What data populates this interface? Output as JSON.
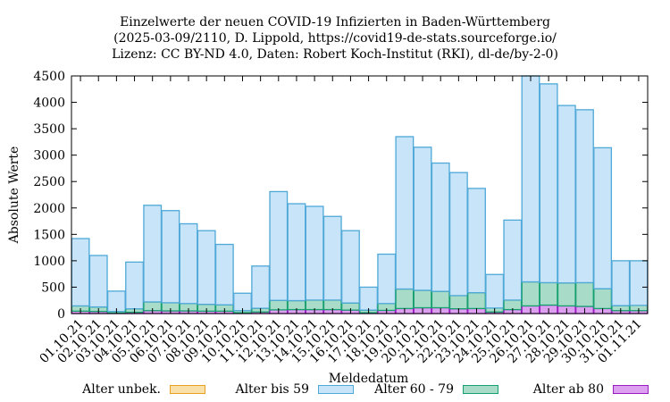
{
  "chart_data": {
    "type": "bar",
    "stacked": true,
    "title_lines": [
      "Einzelwerte der neuen COVID-19 Infizierten in Baden-Württemberg",
      "(2025-03-09/2110, D. Lippold, https://covid19-de-stats.sourceforge.io/",
      "Lizenz: CC BY-ND 4.0, Daten: Robert Koch-Institut (RKI), dl-de/by-2-0)"
    ],
    "xlabel": "Meldedatum",
    "ylabel": "Absolute Werte",
    "ylim": [
      0,
      4500
    ],
    "yticks": [
      0,
      500,
      1000,
      1500,
      2000,
      2500,
      3000,
      3500,
      4000,
      4500
    ],
    "grid": false,
    "legend_position": "bottom",
    "categories": [
      "01.10.21",
      "02.10.21",
      "03.10.21",
      "04.10.21",
      "05.10.21",
      "06.10.21",
      "07.10.21",
      "08.10.21",
      "09.10.21",
      "10.10.21",
      "11.10.21",
      "12.10.21",
      "13.10.21",
      "14.10.21",
      "15.10.21",
      "16.10.21",
      "17.10.21",
      "18.10.21",
      "19.10.21",
      "20.10.21",
      "21.10.21",
      "22.10.21",
      "23.10.21",
      "24.10.21",
      "25.10.21",
      "26.10.21",
      "27.10.21",
      "28.10.21",
      "29.10.21",
      "30.10.21",
      "31.10.21",
      "01.11.21"
    ],
    "tick_labels": [
      "01.10.21",
      "02.10.21",
      "03.10.21",
      "04.10.21",
      "05.10.21",
      "06.10.21",
      "07.10.21",
      "08.10.21",
      "09.10.21",
      "10.10.21",
      "11.10.21",
      "12.10.21",
      "13.10.21",
      "14.10.21",
      "15.10.21",
      "16.10.21",
      "17.10.21",
      "18.10.21",
      "19.10.21",
      "20.10.21",
      "21.10.21",
      "22.10.21",
      "23.10.21",
      "24.10.21",
      "25.10.21",
      "26.10.21",
      "27.10.21",
      "28.10.21",
      "29.10.21",
      "30.10.21",
      "31.10.21",
      "01.11.21"
    ],
    "series": [
      {
        "name": "Alter ab 80",
        "color": "#dda0f0",
        "stroke": "#9a1bbf",
        "values": [
          45,
          40,
          10,
          25,
          55,
          50,
          50,
          45,
          45,
          15,
          30,
          70,
          75,
          75,
          75,
          65,
          15,
          60,
          95,
          110,
          110,
          90,
          95,
          30,
          75,
          145,
          160,
          145,
          135,
          95,
          55,
          55
        ]
      },
      {
        "name": "Alter 60 - 79",
        "color": "#a8dcc8",
        "stroke": "#16a070",
        "values": [
          100,
          85,
          30,
          65,
          165,
          155,
          140,
          130,
          120,
          40,
          70,
          180,
          170,
          180,
          180,
          135,
          50,
          130,
          370,
          330,
          310,
          250,
          300,
          75,
          180,
          455,
          425,
          435,
          450,
          375,
          95,
          100
        ]
      },
      {
        "name": "Alter bis 59",
        "color": "#c8e4f8",
        "stroke": "#4ea8d8",
        "values": [
          1275,
          975,
          385,
          885,
          1830,
          1745,
          1510,
          1395,
          1145,
          330,
          800,
          2060,
          1835,
          1775,
          1585,
          1370,
          435,
          935,
          2885,
          2710,
          2430,
          2330,
          1975,
          635,
          1515,
          3900,
          3765,
          3360,
          3275,
          2670,
          850,
          845
        ]
      },
      {
        "name": "Alter unbek.",
        "color": "#f8e0a8",
        "stroke": "#e8a020",
        "values": [
          0,
          0,
          0,
          0,
          0,
          0,
          0,
          0,
          0,
          0,
          0,
          0,
          0,
          0,
          0,
          0,
          0,
          0,
          0,
          0,
          0,
          0,
          0,
          0,
          0,
          0,
          0,
          0,
          0,
          0,
          0,
          0
        ]
      }
    ],
    "legend_order": [
      "Alter unbek.",
      "Alter bis 59",
      "Alter 60 - 79",
      "Alter ab 80"
    ]
  }
}
